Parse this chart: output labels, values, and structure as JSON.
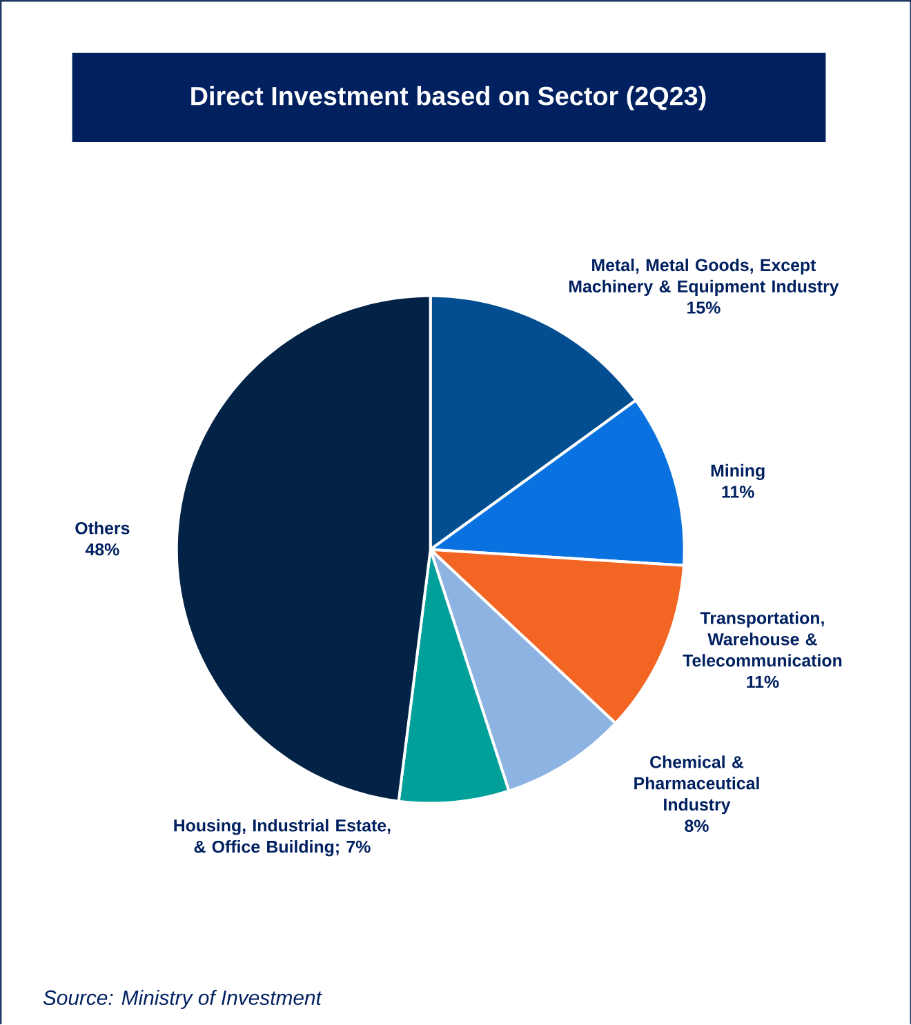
{
  "chart_data": {
    "type": "pie",
    "title": "Direct Investment based on Sector (2Q23)",
    "categories": [
      "Metal, Metal Goods, Except Machinery & Equipment Industry",
      "Mining",
      "Transportation, Warehouse & Telecommunication",
      "Chemical & Pharmaceutical Industry",
      "Housing, Industrial Estate, & Office Building",
      "Others"
    ],
    "values": [
      15,
      11,
      11,
      8,
      7,
      48
    ],
    "colors": [
      "#034e91",
      "#0a72e0",
      "#f26522",
      "#8db3e2",
      "#00a09a",
      "#022345"
    ],
    "value_labels": [
      "15%",
      "11%",
      "11%",
      "8%",
      "; 7%",
      "48%"
    ],
    "annotations": [
      "Source: Ministry of Investment"
    ]
  }
}
